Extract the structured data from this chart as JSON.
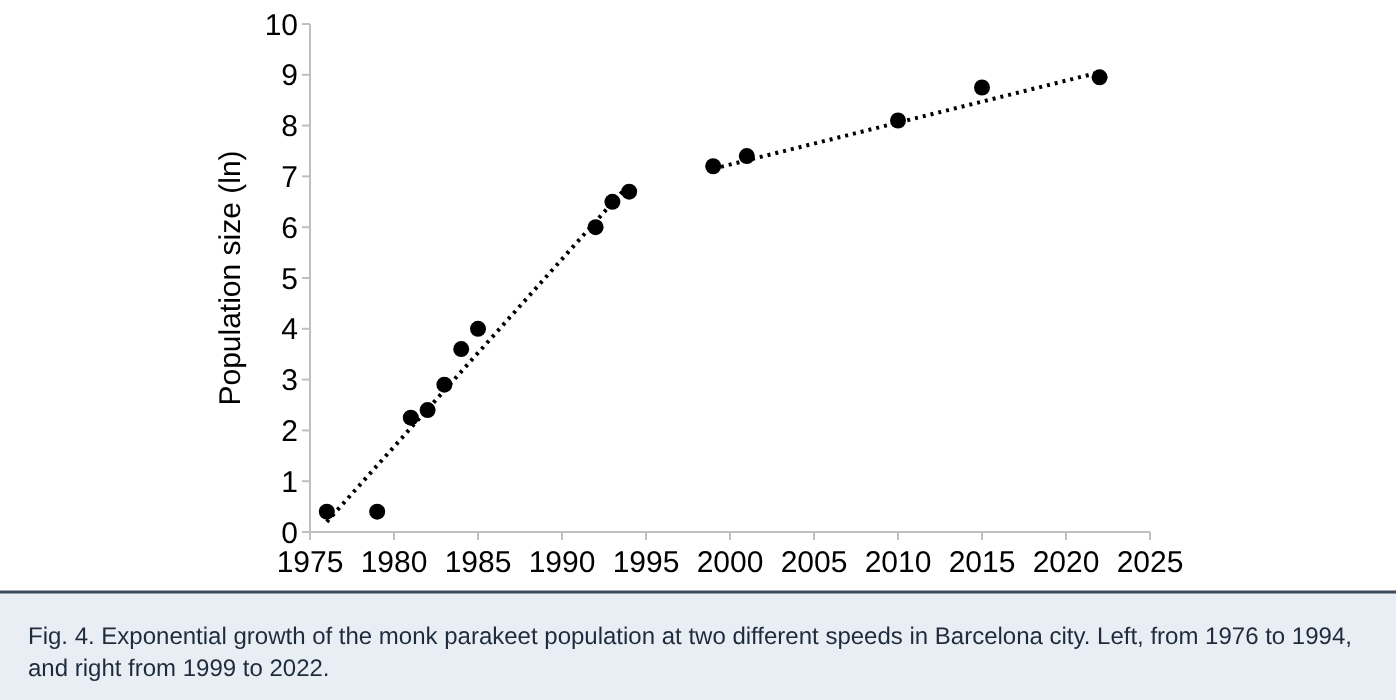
{
  "chart_data": {
    "type": "scatter",
    "ylabel": "Population size (ln)",
    "xlim": [
      1975,
      2025
    ],
    "xticks": [
      1975,
      1980,
      1985,
      1990,
      1995,
      2000,
      2005,
      2010,
      2015,
      2020,
      2025
    ],
    "ylim": [
      0,
      10
    ],
    "yticks": [
      0,
      1,
      2,
      3,
      4,
      5,
      6,
      7,
      8,
      9,
      10
    ],
    "grid": false,
    "marker": "circle",
    "series": [
      {
        "color": "#000000",
        "x": [
          1976,
          1979,
          1981,
          1982,
          1983,
          1984,
          1985,
          1992,
          1993,
          1994,
          1999,
          2001,
          2010,
          2015,
          2022
        ],
        "values": [
          0.4,
          0.4,
          2.25,
          2.4,
          2.9,
          3.6,
          4.0,
          6.0,
          6.5,
          6.7,
          7.2,
          7.4,
          8.1,
          8.75,
          8.95
        ]
      },
      {
        "type": "line",
        "color": "#000000",
        "line_style": "dotted",
        "marker": "none",
        "x": [
          1976,
          1994
        ],
        "values": [
          0.2,
          6.85
        ]
      },
      {
        "type": "line",
        "color": "#000000",
        "line_style": "dotted",
        "marker": "none",
        "x": [
          1999,
          2022
        ],
        "values": [
          7.15,
          9.05
        ]
      }
    ],
    "annotations": [
      "Fig. 4. Exponential growth of the monk parakeet population at two different speeds in Barcelona city. Left, from 1976 to 1994, and right from 1999 to 2022."
    ]
  }
}
